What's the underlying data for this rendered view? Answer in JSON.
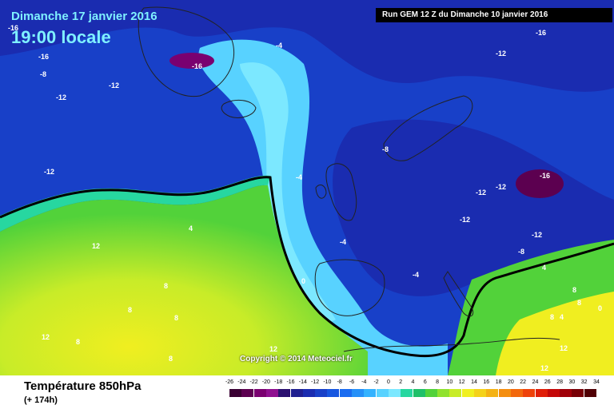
{
  "header": {
    "date": "Dimanche 17 janvier 2016",
    "time": "19:00 locale",
    "run": "Run GEM 12 Z du Dimanche 10 janvier 2016"
  },
  "footer": {
    "field_title": "Température 850hPa",
    "lead": "(+ 174h)",
    "copyright": "Copyright © 2014 Meteociel.fr"
  },
  "legend": {
    "ticks": [
      "-26",
      "-24",
      "-22",
      "-20",
      "-18",
      "-16",
      "-14",
      "-12",
      "-10",
      "-8",
      "-6",
      "-4",
      "-2",
      "0",
      "2",
      "4",
      "6",
      "8",
      "10",
      "12",
      "14",
      "16",
      "18",
      "20",
      "22",
      "24",
      "26",
      "28",
      "30",
      "32",
      "34"
    ],
    "colors": [
      "#3a0033",
      "#5c0050",
      "#7a0070",
      "#8f1090",
      "#2b1070",
      "#1f1f90",
      "#1a2cb0",
      "#1840c8",
      "#1656e0",
      "#1a6cf0",
      "#2590f8",
      "#34b2ff",
      "#58d2ff",
      "#7ce8ff",
      "#27d7a0",
      "#1fc069",
      "#52d23a",
      "#90e22e",
      "#c8ec28",
      "#f0f020",
      "#f4d21a",
      "#f4b214",
      "#f48e10",
      "#f2680c",
      "#ee420a",
      "#e01e08",
      "#c40808",
      "#a00008",
      "#780006",
      "#500004"
    ]
  },
  "isotherms": [
    "-16",
    "-8",
    "-16",
    "-4",
    "-16",
    "-12",
    "-12",
    "-16",
    "-12",
    "-12",
    "-8",
    "-4",
    "-12",
    "-16",
    "-12",
    "-12",
    "-12",
    "4",
    "-4",
    "-4",
    "-8",
    "12",
    "0",
    "4",
    "8",
    "8",
    "8",
    "12",
    "8",
    "12",
    "8",
    "8",
    "8",
    "4",
    "12",
    "0",
    "12",
    "8"
  ]
}
